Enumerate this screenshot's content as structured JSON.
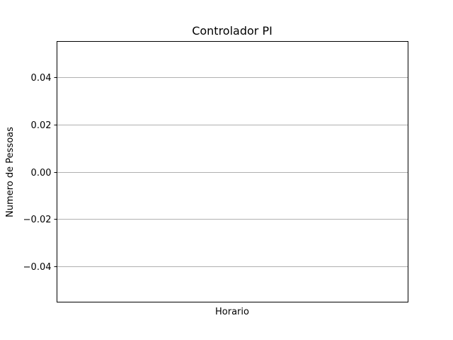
{
  "chart_data": {
    "type": "line",
    "title": "Controlador PI",
    "xlabel": "Horario",
    "ylabel": "Numero de Pessoas",
    "series": [],
    "x": [],
    "ylim": [
      -0.055,
      0.055
    ],
    "yticks": [
      0.04,
      0.02,
      0.0,
      -0.02,
      -0.04
    ],
    "ytick_labels": [
      "0.04",
      "0.02",
      "0.00",
      "−0.02",
      "−0.04"
    ],
    "xticks": [],
    "grid": "horizontal",
    "legend": "none"
  },
  "colors": {
    "grid": "#b0b0b0",
    "axes": "#000000",
    "background": "#ffffff"
  }
}
